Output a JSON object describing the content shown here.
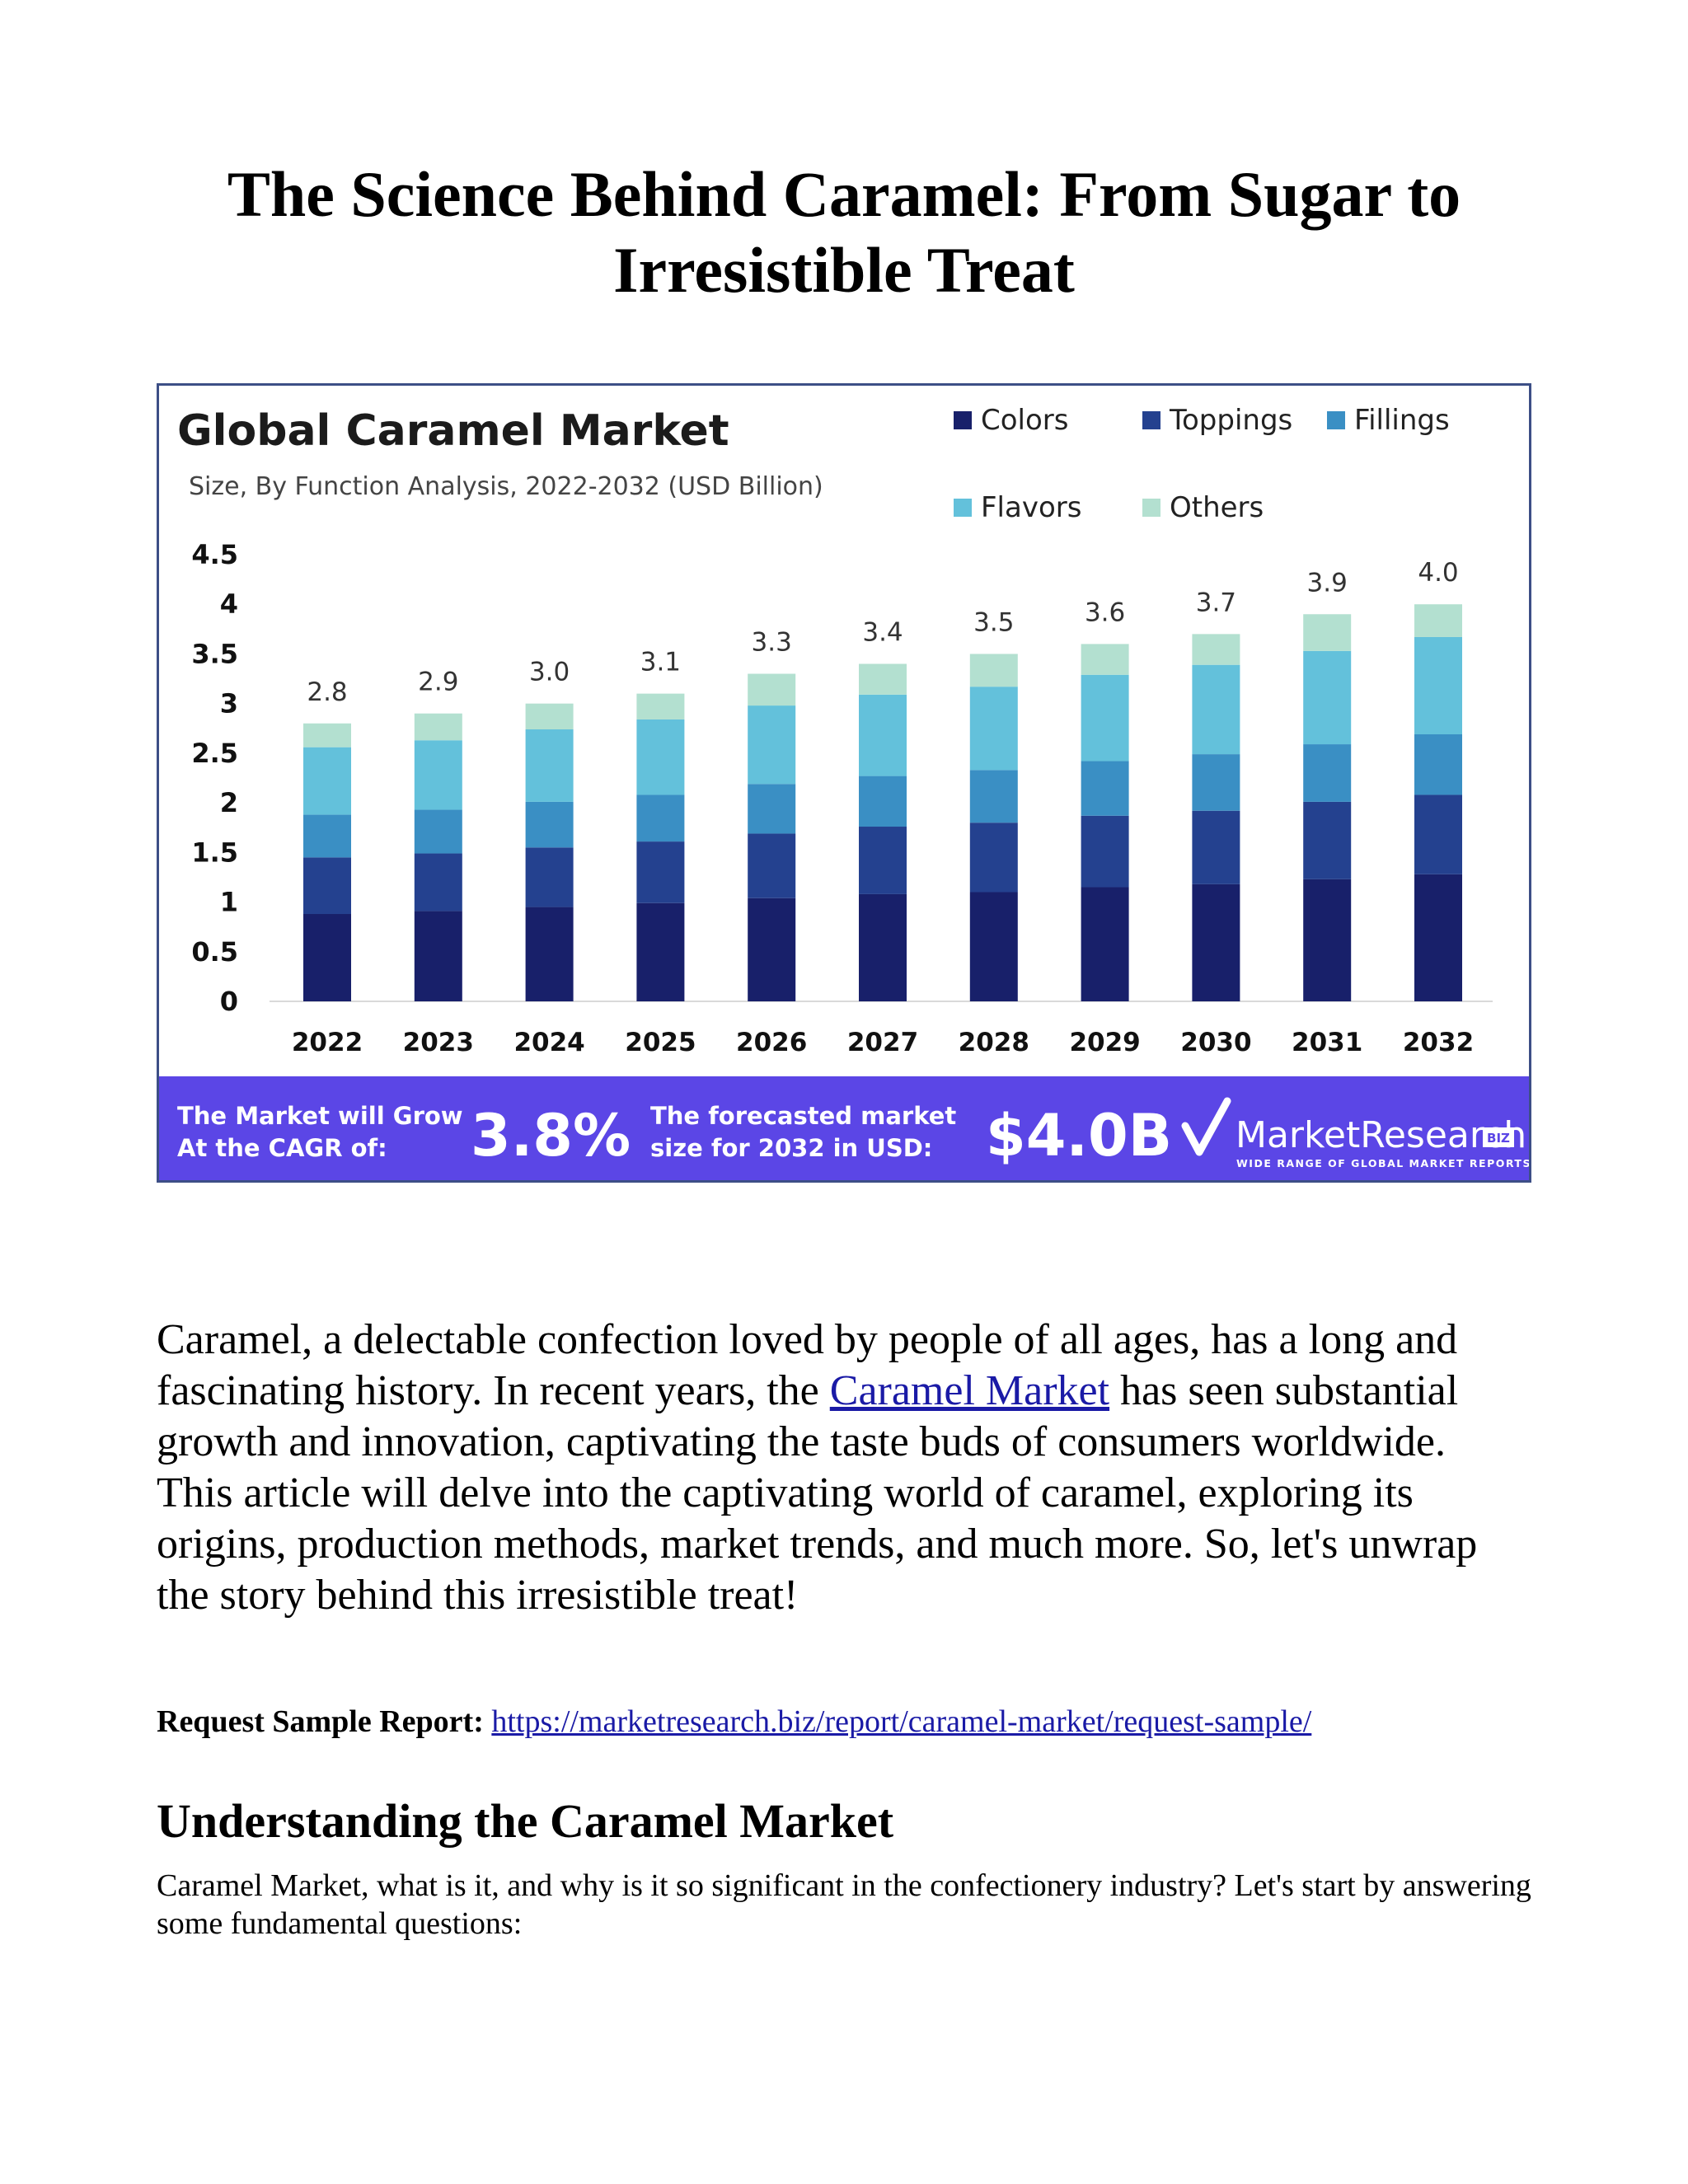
{
  "document": {
    "title": "The Science Behind Caramel: From Sugar to Irresistible Treat",
    "intro_before_link": "Caramel, a delectable confection loved by people of all ages, has a long and fascinating history. In recent years, the ",
    "intro_link_text": "Caramel Market",
    "intro_after_link": " has seen substantial growth and innovation, captivating the taste buds of consumers worldwide. This article will delve into the captivating world of caramel, exploring its origins, production methods, market trends, and much more. So, let's unwrap the story behind this irresistible treat!",
    "request_label": "Request Sample Report:",
    "request_url": "https://marketresearch.biz/report/caramel-market/request-sample/",
    "section_heading": "Understanding the Caramel Market",
    "section_paragraph": "Caramel Market, what is it, and why is it so significant in the confectionery industry? Let's start by answering some fundamental questions:"
  },
  "chart_data": {
    "type": "bar",
    "stacked": true,
    "title": "Global Caramel Market",
    "subtitle": "Size, By Function Analysis, 2022-2032 (USD Billion)",
    "categories": [
      "2022",
      "2023",
      "2024",
      "2025",
      "2026",
      "2027",
      "2028",
      "2029",
      "2030",
      "2031",
      "2032"
    ],
    "series": [
      {
        "name": "Colors",
        "color": "#18206a",
        "values": [
          0.88,
          0.91,
          0.95,
          0.99,
          1.04,
          1.08,
          1.1,
          1.15,
          1.18,
          1.23,
          1.28
        ]
      },
      {
        "name": "Toppings",
        "color": "#24418f",
        "values": [
          0.57,
          0.58,
          0.6,
          0.62,
          0.65,
          0.68,
          0.7,
          0.72,
          0.74,
          0.78,
          0.8
        ]
      },
      {
        "name": "Fillings",
        "color": "#3a8fc4",
        "values": [
          0.43,
          0.44,
          0.46,
          0.47,
          0.5,
          0.51,
          0.53,
          0.55,
          0.57,
          0.58,
          0.61
        ]
      },
      {
        "name": "Flavors",
        "color": "#63c1db",
        "values": [
          0.68,
          0.7,
          0.73,
          0.76,
          0.79,
          0.82,
          0.84,
          0.87,
          0.9,
          0.94,
          0.98
        ]
      },
      {
        "name": "Others",
        "color": "#b3e0d0",
        "values": [
          0.24,
          0.27,
          0.26,
          0.26,
          0.32,
          0.31,
          0.33,
          0.31,
          0.31,
          0.37,
          0.33
        ]
      }
    ],
    "totals": [
      "2.8",
      "2.9",
      "3.0",
      "3.1",
      "3.3",
      "3.4",
      "3.5",
      "3.6",
      "3.7",
      "3.9",
      "4.0"
    ],
    "y_ticks": [
      "0",
      "0.5",
      "1",
      "1.5",
      "2",
      "2.5",
      "3",
      "3.5",
      "4",
      "4.5"
    ],
    "ylim": [
      0,
      4.5
    ],
    "grid": false,
    "legend_position": "top-right",
    "footer": {
      "cagr_label_line1": "The Market will Grow",
      "cagr_label_line2": "At the CAGR of:",
      "cagr_value": "3.8%",
      "forecast_label_line1": "The forecasted market",
      "forecast_label_line2": "size for 2032 in USD:",
      "forecast_value": "$4.0B",
      "brand_main": "MarketResearch",
      "brand_badge": "BIZ",
      "brand_tagline": "WIDE RANGE OF GLOBAL MARKET REPORTS",
      "background_color": "#5b46e6"
    }
  }
}
